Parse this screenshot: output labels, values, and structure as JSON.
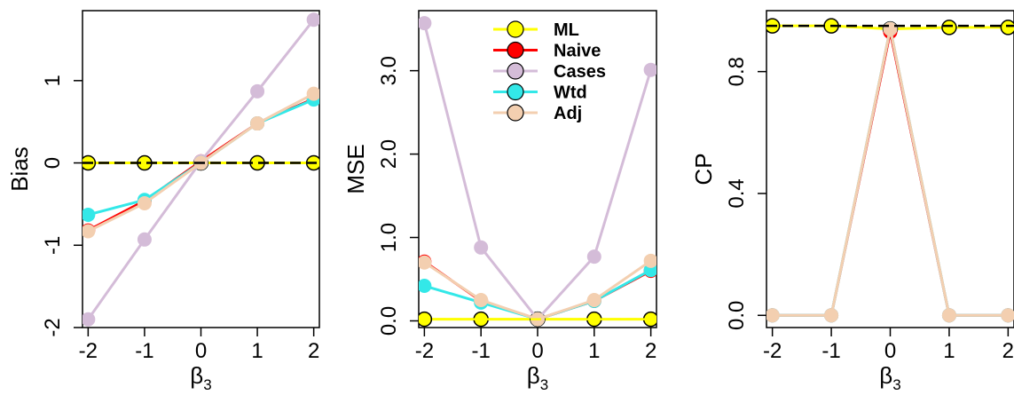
{
  "chart_data": [
    {
      "type": "line",
      "xlabel": "β",
      "xlabel_sub": "3",
      "ylabel": "Bias",
      "x": [
        -2,
        -1,
        0,
        1,
        2
      ],
      "xticks": [
        "-2",
        "-1",
        "0",
        "1",
        "2"
      ],
      "yticks": [
        -2,
        -1,
        0,
        1
      ],
      "ytick_labels": [
        "-2",
        "-1",
        "0",
        "1"
      ],
      "xlim": [
        -2.1,
        2.1
      ],
      "ylim": [
        -2.0,
        1.85
      ],
      "grid": false,
      "legend": false,
      "reference_line": {
        "y": 0,
        "color": "#000000",
        "style": "dashed"
      },
      "series": [
        {
          "name": "ML",
          "color": "#ffff00",
          "values": [
            0.0,
            0.0,
            0.0,
            0.0,
            0.0
          ]
        },
        {
          "name": "Naive",
          "color": "#ff0000",
          "values": [
            -0.82,
            -0.46,
            0.02,
            0.48,
            0.78
          ]
        },
        {
          "name": "Cases",
          "color": "#d4bcd8",
          "values": [
            -1.9,
            -0.93,
            0.02,
            0.87,
            1.74
          ]
        },
        {
          "name": "Wtd",
          "color": "#33e8e8",
          "values": [
            -0.63,
            -0.45,
            0.0,
            0.48,
            0.77
          ]
        },
        {
          "name": "Adj",
          "color": "#f3cfb0",
          "values": [
            -0.83,
            -0.49,
            0.0,
            0.48,
            0.84
          ]
        }
      ]
    },
    {
      "type": "line",
      "xlabel": "β",
      "xlabel_sub": "3",
      "ylabel": "MSE",
      "x": [
        -2,
        -1,
        0,
        1,
        2
      ],
      "xticks": [
        "-2",
        "-1",
        "0",
        "1",
        "2"
      ],
      "yticks": [
        0,
        1,
        2,
        3
      ],
      "ytick_labels": [
        "0.0",
        "1.0",
        "2.0",
        "3.0"
      ],
      "xlim": [
        -2.1,
        2.1
      ],
      "ylim": [
        -0.08,
        3.72
      ],
      "grid": false,
      "legend": true,
      "legend_position": "top-center",
      "reference_line": {
        "y": 0.02,
        "color": "#ffff00",
        "style": "dashed"
      },
      "series": [
        {
          "name": "ML",
          "color": "#ffff00",
          "values": [
            0.02,
            0.02,
            0.02,
            0.02,
            0.02
          ]
        },
        {
          "name": "Naive",
          "color": "#ff0000",
          "values": [
            0.71,
            0.24,
            0.02,
            0.24,
            0.6
          ]
        },
        {
          "name": "Cases",
          "color": "#d4bcd8",
          "values": [
            3.57,
            0.88,
            0.02,
            0.77,
            3.01
          ]
        },
        {
          "name": "Wtd",
          "color": "#33e8e8",
          "values": [
            0.42,
            0.22,
            0.02,
            0.24,
            0.61
          ]
        },
        {
          "name": "Adj",
          "color": "#f3cfb0",
          "values": [
            0.7,
            0.25,
            0.02,
            0.25,
            0.72
          ]
        }
      ]
    },
    {
      "type": "line",
      "xlabel": "β",
      "xlabel_sub": "3",
      "ylabel": "CP",
      "x": [
        -2,
        -1,
        0,
        1,
        2
      ],
      "xticks": [
        "-2",
        "-1",
        "0",
        "1",
        "2"
      ],
      "yticks": [
        0,
        0.4,
        0.8
      ],
      "ytick_labels": [
        "0.0",
        "0.4",
        "0.8"
      ],
      "xlim": [
        -2.1,
        2.1
      ],
      "ylim": [
        -0.04,
        1.0
      ],
      "grid": false,
      "legend": false,
      "reference_line": {
        "y": 0.95,
        "color": "#000000",
        "style": "dashed"
      },
      "series": [
        {
          "name": "ML",
          "color": "#ffff00",
          "values": [
            0.95,
            0.95,
            0.94,
            0.945,
            0.945
          ]
        },
        {
          "name": "Naive",
          "color": "#ff0000",
          "values": [
            0.0,
            0.0,
            0.93,
            0.0,
            0.0
          ]
        },
        {
          "name": "Cases",
          "color": "#d4bcd8",
          "values": [
            0.0,
            0.0,
            0.94,
            0.0,
            0.0
          ]
        },
        {
          "name": "Wtd",
          "color": "#33e8e8",
          "values": [
            0.0,
            0.0,
            0.94,
            0.0,
            0.0
          ]
        },
        {
          "name": "Adj",
          "color": "#f3cfb0",
          "values": [
            0.0,
            0.0,
            0.94,
            0.0,
            0.0
          ]
        }
      ]
    }
  ],
  "legend": {
    "entries": [
      {
        "label": "ML",
        "color": "#ffff00"
      },
      {
        "label": "Naive",
        "color": "#ff0000"
      },
      {
        "label": "Cases",
        "color": "#d4bcd8"
      },
      {
        "label": "Wtd",
        "color": "#33e8e8"
      },
      {
        "label": "Adj",
        "color": "#f3cfb0"
      }
    ]
  }
}
